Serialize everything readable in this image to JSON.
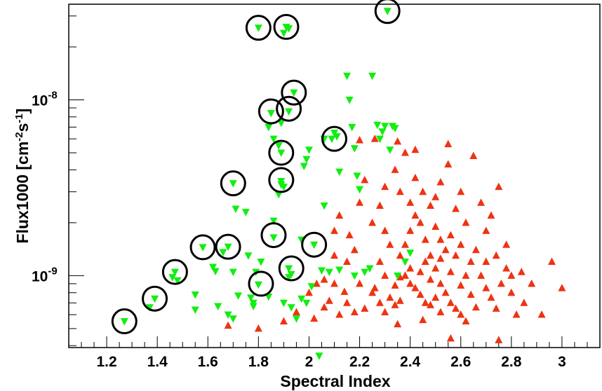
{
  "chart_data": {
    "type": "scatter",
    "title": "",
    "xlabel": "Spectral Index",
    "ylabel_main": "Flux1000 [cm",
    "ylabel_exp1": "-2",
    "ylabel_mid": "s",
    "ylabel_exp2": "-1",
    "ylabel_end": "]",
    "xlim": [
      1.05,
      3.15
    ],
    "ylim": [
      3.9e-10,
      3.5e-08
    ],
    "yscale": "log",
    "grid": false,
    "x_ticks": [
      "1.2",
      "1.4",
      "1.6",
      "1.8",
      "2",
      "2.2",
      "2.4",
      "2.6",
      "2.8",
      "3"
    ],
    "y_ticks": [
      {
        "base": "10",
        "exp": "-9",
        "value": 1e-09
      },
      {
        "base": "10",
        "exp": "-8",
        "value": 1e-08
      }
    ],
    "colors": {
      "green": "#11ee11",
      "red": "#ee3311",
      "circle": "#000000"
    },
    "series": [
      {
        "marker": "triangle-down",
        "color": "#11ee11",
        "points": [
          [
            1.27,
            5.5e-10
          ],
          [
            1.39,
            7.4e-10
          ],
          [
            1.37,
            6.6e-10
          ],
          [
            1.47,
            1.05e-09
          ],
          [
            1.48,
            9.4e-10
          ],
          [
            1.46,
            9.8e-10
          ],
          [
            1.55,
            7.8e-10
          ],
          [
            1.55,
            6.4e-10
          ],
          [
            1.58,
            1.45e-09
          ],
          [
            1.62,
            1.12e-09
          ],
          [
            1.63,
            1.06e-09
          ],
          [
            1.64,
            6.7e-10
          ],
          [
            1.66,
            1.36e-09
          ],
          [
            1.68,
            1.46e-09
          ],
          [
            1.7,
            1.05e-09
          ],
          [
            1.68,
            6e-10
          ],
          [
            1.7,
            5.7e-10
          ],
          [
            1.72,
            7.7e-10
          ],
          [
            1.71,
            2.4e-09
          ],
          [
            1.7,
            3.35e-09
          ],
          [
            1.75,
            2.3e-09
          ],
          [
            1.76,
            1.3e-09
          ],
          [
            1.78,
            7e-10
          ],
          [
            1.78,
            6.7e-10
          ],
          [
            1.8,
            8.9e-10
          ],
          [
            1.79,
            1.05e-09
          ],
          [
            1.81,
            1.2e-09
          ],
          [
            1.8,
            2.57e-08
          ],
          [
            1.77,
            7.5e-10
          ],
          [
            1.84,
            7.6e-10
          ],
          [
            1.85,
            8.4e-09
          ],
          [
            1.84,
            7e-09
          ],
          [
            1.86,
            1.65e-09
          ],
          [
            1.86,
            2.05e-09
          ],
          [
            1.86,
            6e-09
          ],
          [
            1.88,
            5.5e-09
          ],
          [
            1.89,
            3.3e-09
          ],
          [
            1.88,
            2.9e-09
          ],
          [
            1.89,
            3.45e-09
          ],
          [
            1.9,
            3.2e-09
          ],
          [
            1.89,
            5e-09
          ],
          [
            1.89,
            7.4e-09
          ],
          [
            1.9,
            7e-10
          ],
          [
            1.91,
            2.6e-08
          ],
          [
            1.92,
            2.55e-08
          ],
          [
            1.9,
            2.4e-08
          ],
          [
            1.92,
            8.6e-09
          ],
          [
            1.94,
            1.1e-08
          ],
          [
            1.92,
            1.1e-09
          ],
          [
            1.93,
            1.02e-09
          ],
          [
            1.92,
            9.8e-10
          ],
          [
            1.93,
            6.6e-10
          ],
          [
            1.95,
            5.7e-10
          ],
          [
            1.97,
            7.4e-10
          ],
          [
            1.97,
            1.6e-09
          ],
          [
            1.98,
            4.2e-09
          ],
          [
            1.99,
            4.6e-09
          ],
          [
            2.0,
            5.2e-09
          ],
          [
            1.99,
            7e-10
          ],
          [
            2.02,
            1.5e-09
          ],
          [
            2.01,
            8.7e-10
          ],
          [
            2.04,
            3.5e-10
          ],
          [
            2.06,
            2.5e-09
          ],
          [
            2.06,
            6e-09
          ],
          [
            2.09,
            6e-09
          ],
          [
            2.1,
            6.5e-09
          ],
          [
            2.11,
            6.2e-09
          ],
          [
            2.12,
            3.9e-09
          ],
          [
            2.15,
            1.37e-08
          ],
          [
            2.16,
            1e-08
          ],
          [
            2.17,
            7e-09
          ],
          [
            2.18,
            5.3e-09
          ],
          [
            2.19,
            3.7e-09
          ],
          [
            2.2,
            3.1e-09
          ],
          [
            2.25,
            1.37e-08
          ],
          [
            2.27,
            7.2e-09
          ],
          [
            2.28,
            6e-09
          ],
          [
            2.29,
            6.6e-09
          ],
          [
            2.3,
            7.1e-09
          ],
          [
            2.31,
            3.2e-08
          ],
          [
            2.33,
            7.1e-09
          ],
          [
            2.34,
            6.9e-09
          ],
          [
            2.32,
            5.2e-09
          ],
          [
            2.35,
            1e-09
          ],
          [
            2.38,
            1.2e-09
          ],
          [
            2.4,
            1.35e-09
          ],
          [
            2.12,
            1.08e-09
          ],
          [
            2.08,
            1.05e-09
          ],
          [
            2.05,
            1.07e-09
          ],
          [
            2.18,
            1e-09
          ],
          [
            2.22,
            1.05e-09
          ],
          [
            2.24,
            1.1e-09
          ]
        ]
      },
      {
        "marker": "triangle-up",
        "color": "#ee3311",
        "points": [
          [
            1.68,
            5.2e-10
          ],
          [
            1.8,
            5e-10
          ],
          [
            1.9,
            5.5e-10
          ],
          [
            1.95,
            6.2e-10
          ],
          [
            2.0,
            8e-10
          ],
          [
            2.03,
            9e-10
          ],
          [
            2.06,
            9.5e-10
          ],
          [
            2.1,
            9e-10
          ],
          [
            2.12,
            6e-10
          ],
          [
            2.15,
            7e-10
          ],
          [
            2.18,
            6.2e-10
          ],
          [
            2.2,
            9e-10
          ],
          [
            2.22,
            6.5e-10
          ],
          [
            2.25,
            8e-10
          ],
          [
            2.28,
            1.2e-09
          ],
          [
            2.3,
            1e-09
          ],
          [
            2.32,
            7.5e-10
          ],
          [
            2.34,
            6.8e-10
          ],
          [
            2.36,
            7.2e-10
          ],
          [
            2.38,
            1.5e-09
          ],
          [
            2.4,
            1.8e-09
          ],
          [
            2.42,
            2.2e-09
          ],
          [
            2.44,
            2e-09
          ],
          [
            2.46,
            1.6e-09
          ],
          [
            2.48,
            1.3e-09
          ],
          [
            2.5,
            1.1e-09
          ],
          [
            2.52,
            9e-10
          ],
          [
            2.54,
            8e-10
          ],
          [
            2.56,
            7e-10
          ],
          [
            2.58,
            6.5e-10
          ],
          [
            2.6,
            6e-10
          ],
          [
            2.62,
            1e-09
          ],
          [
            2.64,
            1.2e-09
          ],
          [
            2.66,
            1.4e-09
          ],
          [
            2.68,
            1e-09
          ],
          [
            2.7,
            8.5e-10
          ],
          [
            2.72,
            7.5e-10
          ],
          [
            2.74,
            6.5e-10
          ],
          [
            2.76,
            9e-10
          ],
          [
            2.78,
            1.1e-09
          ],
          [
            2.8,
            8e-10
          ],
          [
            2.82,
            6e-10
          ],
          [
            2.85,
            7e-10
          ],
          [
            2.88,
            9e-10
          ],
          [
            2.92,
            6e-10
          ],
          [
            2.96,
            1.2e-09
          ],
          [
            3.0,
            8.5e-10
          ],
          [
            2.28,
            2.5e-09
          ],
          [
            2.3,
            3.2e-09
          ],
          [
            2.34,
            4e-09
          ],
          [
            2.36,
            3e-09
          ],
          [
            2.4,
            2.6e-09
          ],
          [
            2.42,
            3.6e-09
          ],
          [
            2.45,
            3e-09
          ],
          [
            2.5,
            2.8e-09
          ],
          [
            2.52,
            3.4e-09
          ],
          [
            2.55,
            4.3e-09
          ],
          [
            2.58,
            2.4e-09
          ],
          [
            2.6,
            3e-09
          ],
          [
            2.62,
            2e-09
          ],
          [
            2.65,
            4.8e-09
          ],
          [
            2.68,
            2.6e-09
          ],
          [
            2.7,
            1.8e-09
          ],
          [
            2.72,
            2.2e-09
          ],
          [
            2.75,
            3.2e-09
          ],
          [
            2.55,
            5.6e-09
          ],
          [
            2.38,
            5e-09
          ],
          [
            2.35,
            5.8e-09
          ],
          [
            2.42,
            5.2e-09
          ],
          [
            2.2,
            5.9e-09
          ],
          [
            2.26,
            6e-09
          ],
          [
            2.22,
            3.5e-09
          ],
          [
            2.2,
            2.6e-09
          ],
          [
            2.25,
            2e-09
          ],
          [
            2.3,
            1.8e-09
          ],
          [
            2.32,
            1.5e-09
          ],
          [
            2.15,
            1.2e-09
          ],
          [
            2.18,
            1.4e-09
          ],
          [
            2.1,
            1.3e-09
          ],
          [
            2.46,
            1.2e-09
          ],
          [
            2.48,
            2.5e-09
          ],
          [
            2.5,
            1.9e-09
          ],
          [
            2.52,
            1.6e-09
          ],
          [
            2.54,
            1.4e-09
          ],
          [
            2.56,
            1.7e-09
          ],
          [
            2.58,
            1.3e-09
          ],
          [
            2.6,
            1.5e-09
          ],
          [
            2.36,
            1.3e-09
          ],
          [
            2.38,
            1e-09
          ],
          [
            2.4,
            9e-10
          ],
          [
            2.42,
            8.5e-10
          ],
          [
            2.44,
            7.8e-10
          ],
          [
            2.46,
            7e-10
          ],
          [
            2.48,
            6.8e-10
          ],
          [
            2.5,
            7.5e-10
          ],
          [
            2.52,
            6.2e-10
          ],
          [
            2.26,
            8.5e-10
          ],
          [
            2.28,
            7e-10
          ],
          [
            2.3,
            6.2e-10
          ],
          [
            2.34,
            8.8e-10
          ],
          [
            2.36,
            9.8e-10
          ],
          [
            2.4,
            1.1e-09
          ],
          [
            2.44,
            1.05e-09
          ],
          [
            2.48,
            9.5e-10
          ],
          [
            2.52,
            1.25e-09
          ],
          [
            2.56,
            1.05e-09
          ],
          [
            2.6,
            8.8e-10
          ],
          [
            2.64,
            7.8e-10
          ],
          [
            2.66,
            6.6e-10
          ],
          [
            2.7,
            1.2e-09
          ],
          [
            2.74,
            1.3e-09
          ],
          [
            2.78,
            1.5e-09
          ],
          [
            2.8,
            1e-09
          ],
          [
            2.84,
            1.05e-09
          ],
          [
            2.1,
            1.8e-09
          ],
          [
            2.16,
            1.7e-09
          ],
          [
            2.12,
            2.2e-09
          ],
          [
            2.56,
            4.4e-10
          ],
          [
            2.75,
            4.3e-10
          ],
          [
            2.62,
            5.5e-10
          ],
          [
            2.45,
            5.6e-10
          ],
          [
            2.35,
            5.3e-10
          ],
          [
            2.02,
            5.7e-10
          ],
          [
            2.08,
            7.2e-10
          ],
          [
            2.06,
            6.6e-10
          ],
          [
            2.14,
            8.1e-10
          ]
        ]
      }
    ],
    "circled_points": [
      [
        1.27,
        5.5e-10
      ],
      [
        1.39,
        7.4e-10
      ],
      [
        1.47,
        1.05e-09
      ],
      [
        1.58,
        1.45e-09
      ],
      [
        1.68,
        1.46e-09
      ],
      [
        1.7,
        3.35e-09
      ],
      [
        1.8,
        2.57e-08
      ],
      [
        1.91,
        2.6e-08
      ],
      [
        1.81,
        9e-10
      ],
      [
        1.86,
        1.7e-09
      ],
      [
        1.85,
        8.6e-09
      ],
      [
        1.92,
        8.9e-09
      ],
      [
        1.94,
        1.1e-08
      ],
      [
        1.89,
        5e-09
      ],
      [
        1.89,
        3.5e-09
      ],
      [
        1.93,
        1.1e-09
      ],
      [
        2.02,
        1.5e-09
      ],
      [
        2.1,
        6e-09
      ],
      [
        2.31,
        3.2e-08
      ]
    ]
  }
}
